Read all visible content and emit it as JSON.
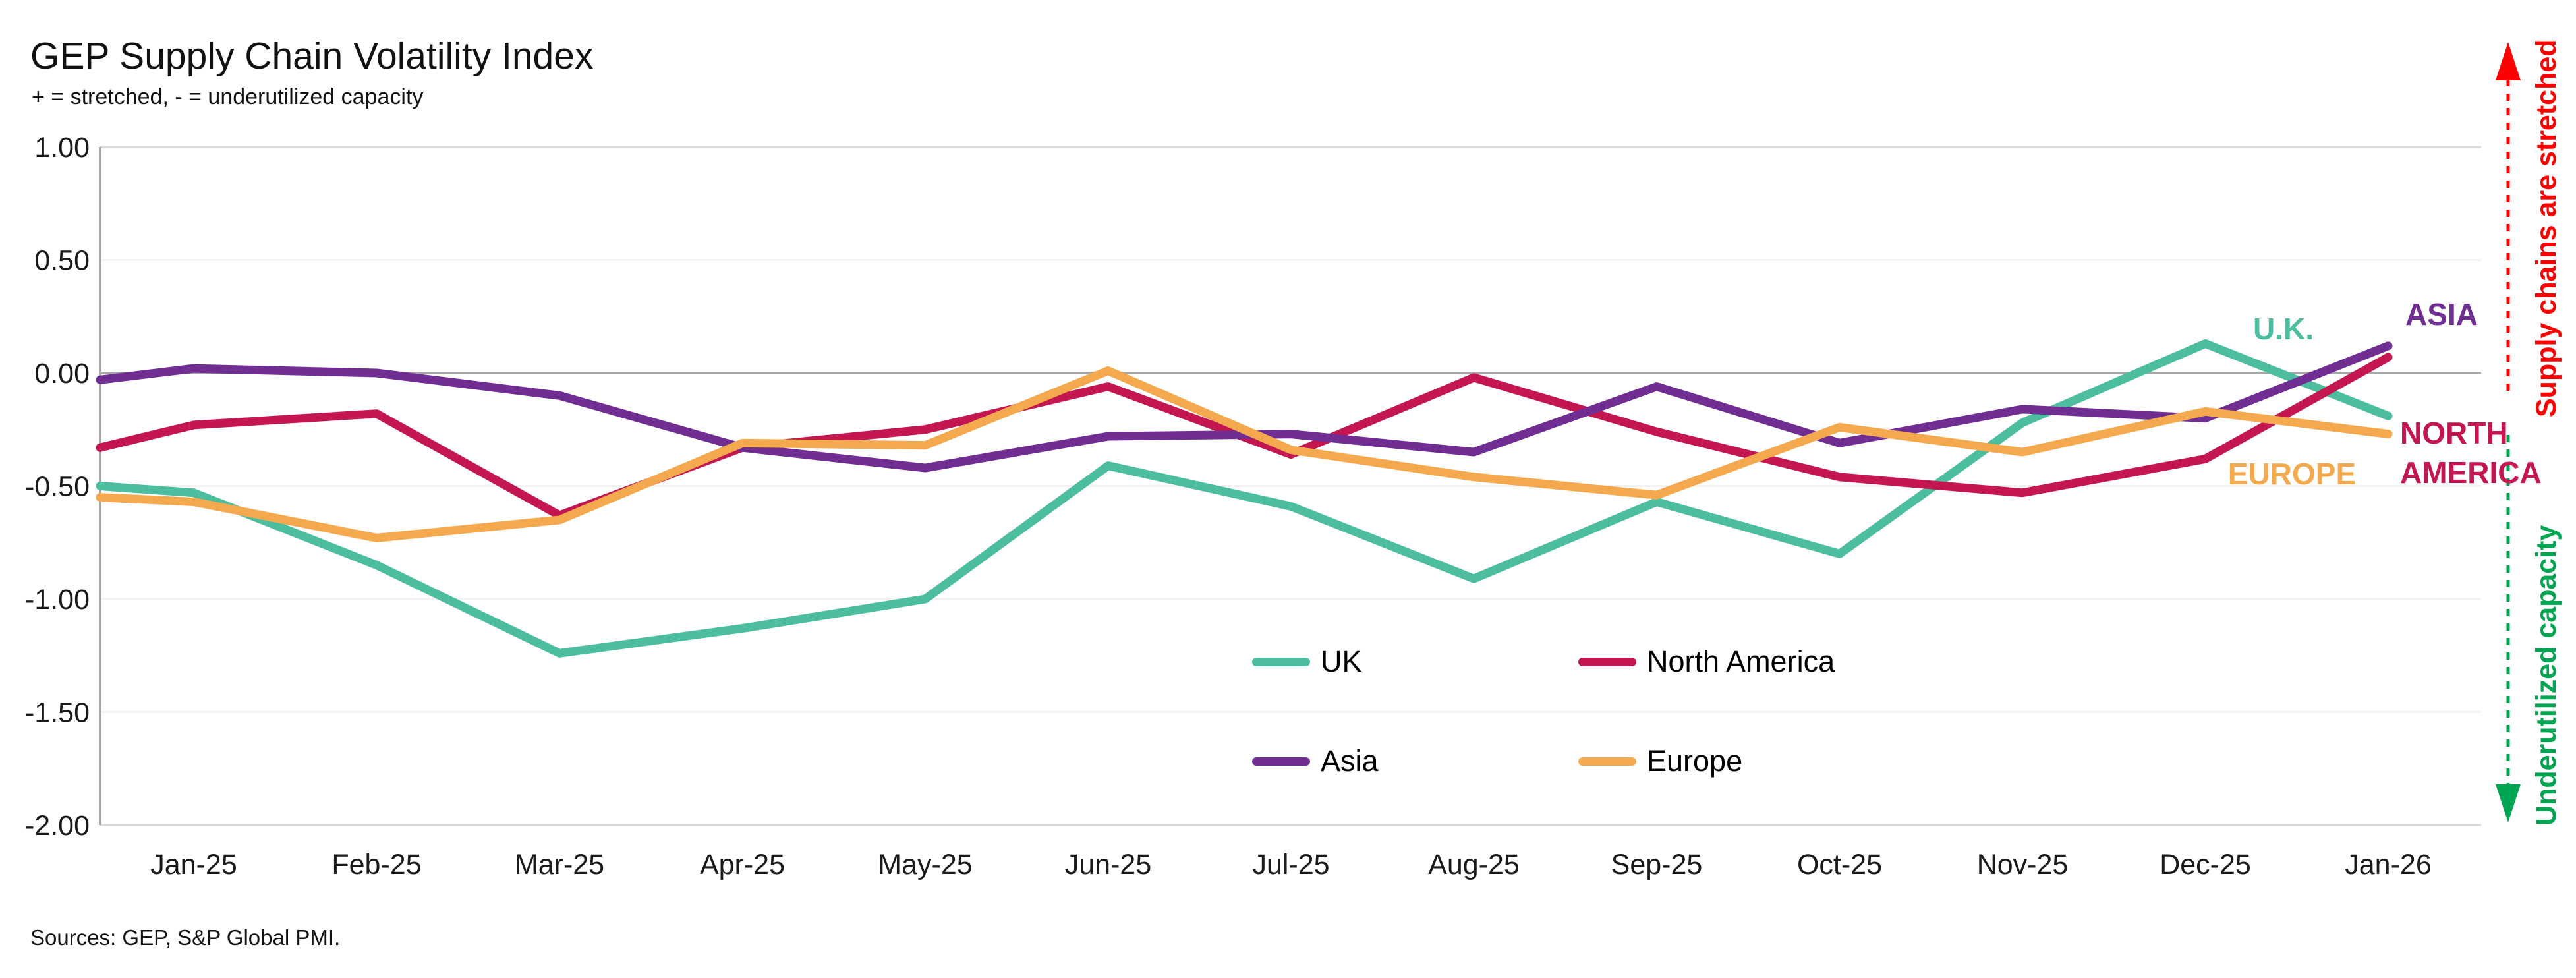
{
  "header": {
    "title": "GEP Supply Chain Volatility Index",
    "subtitle": "+ = stretched, - = underutilized capacity"
  },
  "footer": {
    "source": "Sources: GEP, S&P Global PMI."
  },
  "annotations": {
    "stretched": {
      "text": "Supply chains are stretched",
      "color": "#FE0000",
      "direction": "up"
    },
    "underutilized": {
      "text": "Underutilized capacity",
      "color": "#00A551",
      "direction": "down"
    }
  },
  "chart_data": {
    "type": "line",
    "title": "GEP Supply Chain Volatility Index",
    "categories": [
      "Jan-25",
      "Feb-25",
      "Mar-25",
      "Apr-25",
      "May-25",
      "Jun-25",
      "Jul-25",
      "Aug-25",
      "Sep-25",
      "Oct-25",
      "Nov-25",
      "Dec-25",
      "Jan-26"
    ],
    "series": [
      {
        "name": "UK",
        "end_label": "U.K.",
        "color": "#4CBD9E",
        "edge_value": -0.5,
        "values": [
          -0.53,
          -0.85,
          -1.24,
          -1.13,
          -1.0,
          -0.41,
          -0.59,
          -0.91,
          -0.57,
          -0.8,
          -0.22,
          0.13,
          -0.19
        ]
      },
      {
        "name": "North America",
        "end_label": "NORTH AMERICA",
        "color": "#C4164F",
        "edge_value": -0.33,
        "values": [
          -0.23,
          -0.18,
          -0.63,
          -0.33,
          -0.25,
          -0.06,
          -0.36,
          -0.02,
          -0.26,
          -0.46,
          -0.53,
          -0.38,
          0.07
        ]
      },
      {
        "name": "Asia",
        "end_label": "ASIA",
        "color": "#702E93",
        "edge_value": -0.03,
        "values": [
          0.02,
          0.0,
          -0.1,
          -0.33,
          -0.42,
          -0.28,
          -0.27,
          -0.35,
          -0.06,
          -0.31,
          -0.16,
          -0.2,
          0.12
        ]
      },
      {
        "name": "Europe",
        "end_label": "EUROPE",
        "color": "#F5A94E",
        "edge_value": -0.55,
        "values": [
          -0.57,
          -0.73,
          -0.65,
          -0.31,
          -0.32,
          0.01,
          -0.34,
          -0.46,
          -0.54,
          -0.24,
          -0.35,
          -0.17,
          -0.27
        ]
      }
    ],
    "ylim": [
      -2.0,
      1.0
    ],
    "yticks": [
      "1.00",
      "0.50",
      "0.00",
      "-0.50",
      "-1.00",
      "-1.50",
      "-2.00"
    ],
    "grid": "horizontal",
    "zero_line_color": "#A6A6A6",
    "border_line_color": "#D9D9D9",
    "grid_line_color": "#F2F2F2",
    "legend_position": "inside-bottom-center",
    "legend_rows": [
      [
        "UK",
        "North America"
      ],
      [
        "Asia",
        "Europe"
      ]
    ]
  }
}
